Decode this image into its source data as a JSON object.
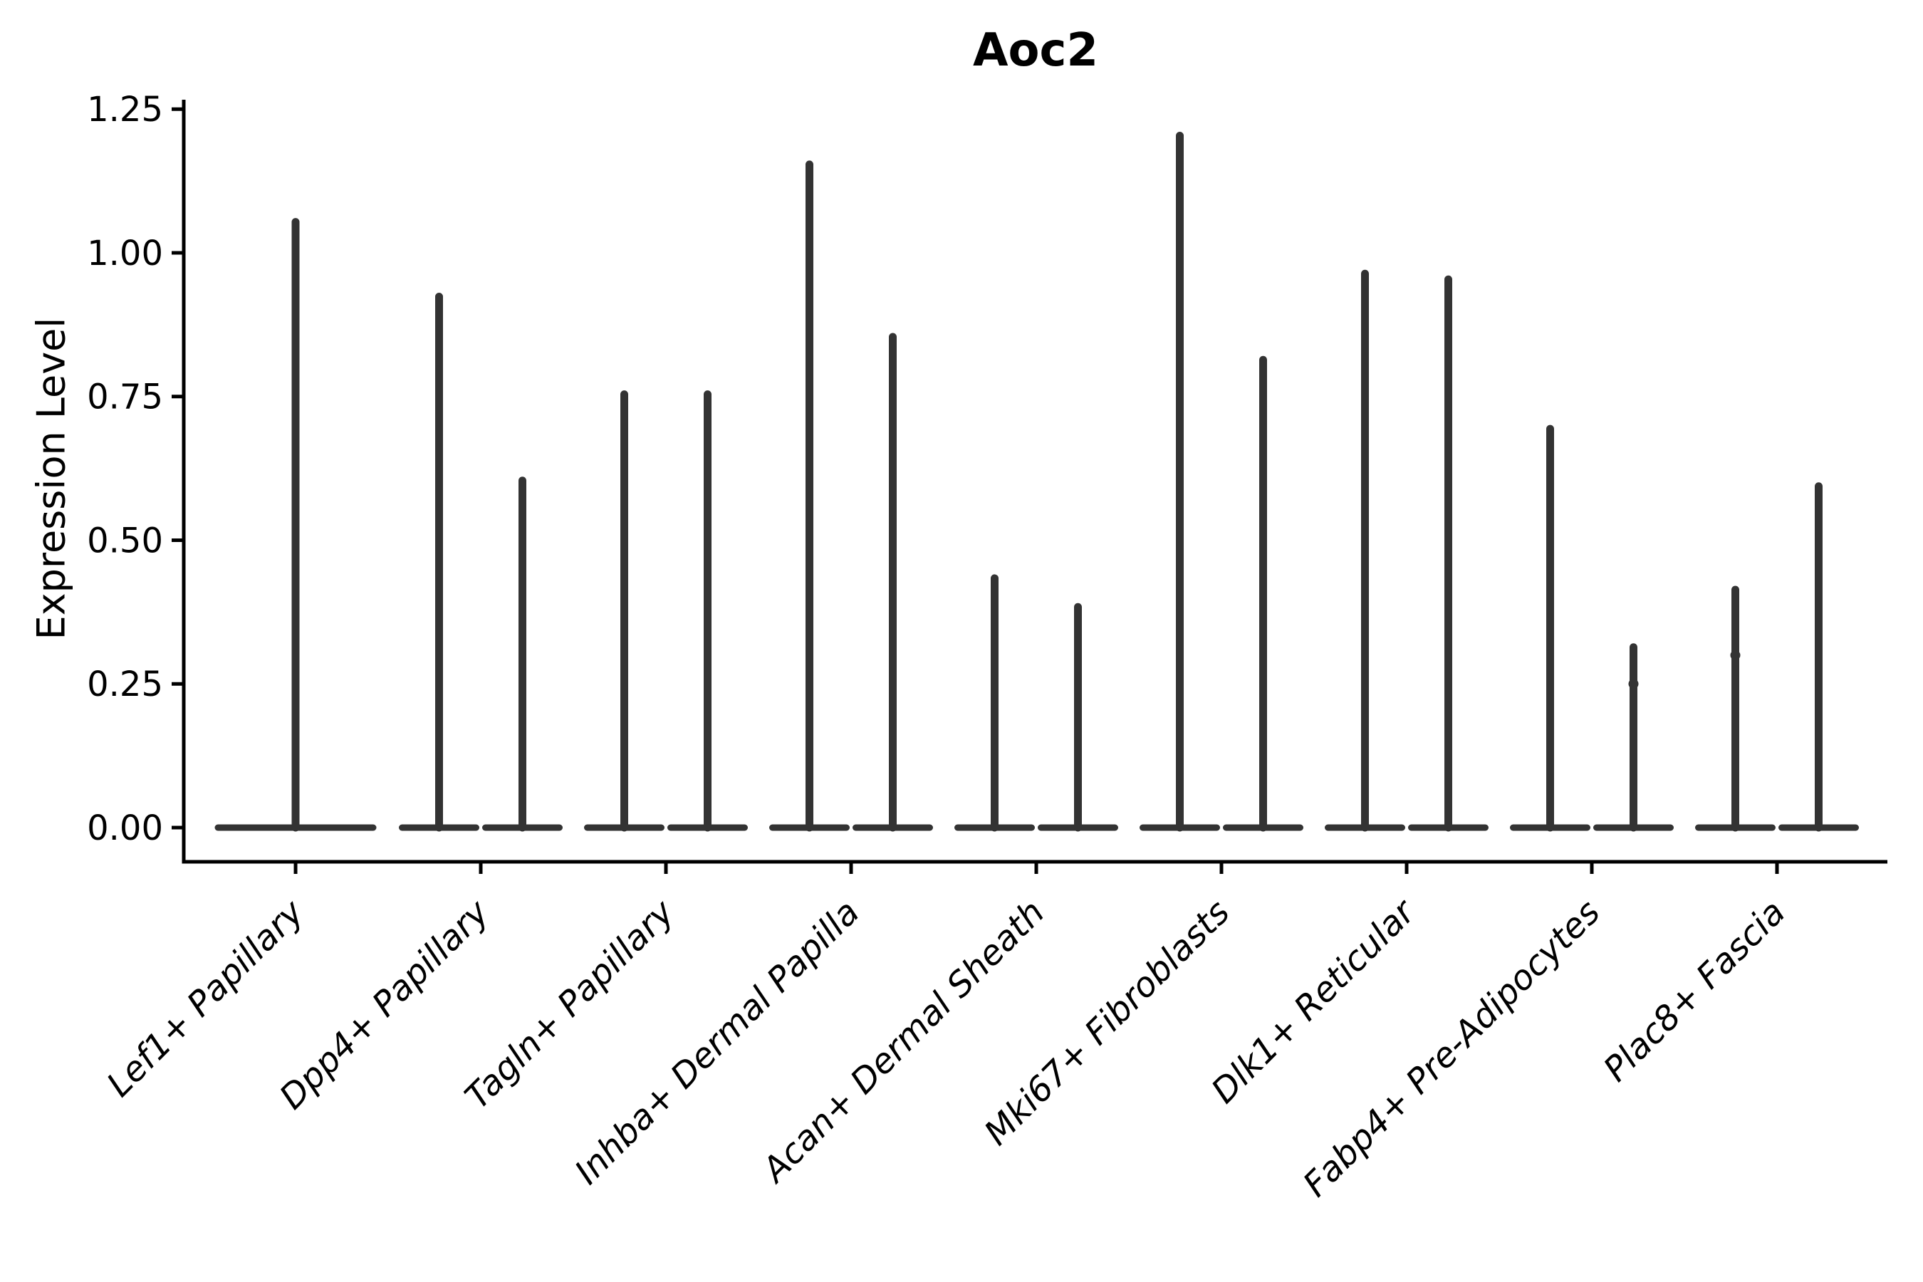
{
  "figure": {
    "background": "#ffffff"
  },
  "chart_data": {
    "type": "violin",
    "title": "Aoc2",
    "ylabel": "Expression Level",
    "xlabel": "",
    "ylim": [
      -0.06,
      1.27
    ],
    "grid": false,
    "legend": null,
    "violin_color": "#333333",
    "axis_color": "#000000",
    "spines": {
      "left": true,
      "bottom": true,
      "top": false,
      "right": false
    },
    "yticks": [
      {
        "value": 0.0,
        "label": "0.00"
      },
      {
        "value": 0.25,
        "label": "0.25"
      },
      {
        "value": 0.5,
        "label": "0.50"
      },
      {
        "value": 0.75,
        "label": "0.75"
      },
      {
        "value": 1.0,
        "label": "1.00"
      },
      {
        "value": 1.25,
        "label": "1.25"
      }
    ],
    "categories": [
      {
        "label": "Lef1+ Papillary",
        "violins": [
          {
            "max": 1.06
          }
        ]
      },
      {
        "label": "Dpp4+ Papillary",
        "violins": [
          {
            "max": 0.93
          },
          {
            "max": 0.61
          }
        ]
      },
      {
        "label": "Tagln+ Papillary",
        "violins": [
          {
            "max": 0.76
          },
          {
            "max": 0.76
          }
        ]
      },
      {
        "label": "Inhba+ Dermal Papilla",
        "violins": [
          {
            "max": 1.16
          },
          {
            "max": 0.86
          }
        ]
      },
      {
        "label": "Acan+ Dermal Sheath",
        "violins": [
          {
            "max": 0.44
          },
          {
            "max": 0.39
          }
        ]
      },
      {
        "label": "Mki67+ Fibroblasts",
        "violins": [
          {
            "max": 1.21
          },
          {
            "max": 0.82
          }
        ]
      },
      {
        "label": "Dlk1+ Reticular",
        "violins": [
          {
            "max": 0.97
          },
          {
            "max": 0.96
          }
        ]
      },
      {
        "label": "Fabp4+ Pre-Adipocytes",
        "violins": [
          {
            "max": 0.7
          },
          {
            "max": 0.32,
            "knots": [
              0.25
            ]
          }
        ]
      },
      {
        "label": "Plac8+ Fascia",
        "violins": [
          {
            "max": 0.42,
            "knots": [
              0.3
            ]
          },
          {
            "max": 0.6
          }
        ]
      }
    ]
  }
}
